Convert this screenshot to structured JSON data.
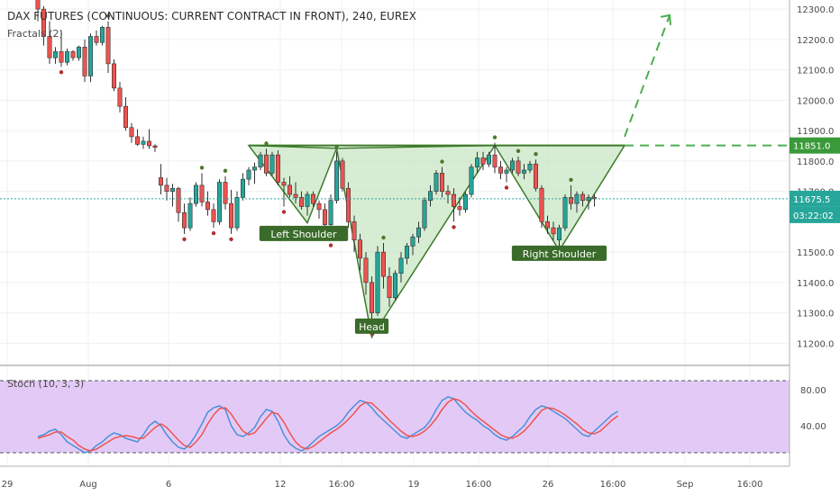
{
  "chart_data": [
    {
      "type": "candlestick",
      "title": "DAX FUTURES (CONTINUOUS: CURRENT CONTRACT IN FRONT), 240, EUREX",
      "indicator_label": "Fractals (2)",
      "y_axis": {
        "ticks": [
          "12300.0",
          "12200.0",
          "12100.0",
          "12000.0",
          "11900.0",
          "11800.0",
          "11700.0",
          "11500.0",
          "11400.0",
          "11300.0",
          "11200.0"
        ],
        "tick_values": [
          12300,
          12200,
          12100,
          12000,
          11900,
          11800,
          11700,
          11500,
          11400,
          11300,
          11200
        ],
        "range": [
          11130,
          12330
        ]
      },
      "x_axis": {
        "ticks": [
          "29",
          "Aug",
          "6",
          "12",
          "16:00",
          "19",
          "16:00",
          "26",
          "16:00",
          "Sep",
          "16:00"
        ]
      },
      "price_tags": [
        {
          "label": "11851.0",
          "value": 11851,
          "color": "#3a9a3a"
        },
        {
          "label": "11675.5",
          "value": 11675.5,
          "color": "#26a69a"
        },
        {
          "label": "03:22:02",
          "value": 11632,
          "color": "#26a69a"
        }
      ],
      "current_price": 11675.5,
      "neckline": 11851,
      "colors": {
        "up": "#26a69a",
        "down": "#ef5350",
        "pattern": "#3c7a2a",
        "fill": "#c8e6c4",
        "fractal_up": "#4a7a2a",
        "fractal_down": "#b03030"
      },
      "candles": [
        [
          12340,
          12345,
          12260,
          12300
        ],
        [
          12300,
          12310,
          12180,
          12210
        ],
        [
          12210,
          12260,
          12120,
          12140
        ],
        [
          12140,
          12175,
          12120,
          12160
        ],
        [
          12160,
          12230,
          12110,
          12125
        ],
        [
          12125,
          12170,
          12115,
          12160
        ],
        [
          12160,
          12165,
          12130,
          12140
        ],
        [
          12140,
          12180,
          12130,
          12175
        ],
        [
          12175,
          12200,
          12060,
          12080
        ],
        [
          12080,
          12220,
          12060,
          12210
        ],
        [
          12210,
          12230,
          12180,
          12190
        ],
        [
          12190,
          12245,
          12180,
          12240
        ],
        [
          12240,
          12260,
          12090,
          12120
        ],
        [
          12120,
          12135,
          12030,
          12040
        ],
        [
          12040,
          12060,
          11960,
          11980
        ],
        [
          11980,
          12010,
          11900,
          11910
        ],
        [
          11910,
          11925,
          11860,
          11880
        ],
        [
          11880,
          11905,
          11850,
          11855
        ],
        [
          11855,
          11880,
          11840,
          11865
        ],
        [
          11865,
          11905,
          11840,
          11850
        ],
        [
          11850,
          11855,
          11830,
          11845
        ],
        [
          11745,
          11790,
          11690,
          11720
        ],
        [
          11720,
          11745,
          11670,
          11700
        ],
        [
          11700,
          11725,
          11650,
          11710
        ],
        [
          11710,
          11715,
          11600,
          11630
        ],
        [
          11630,
          11660,
          11560,
          11580
        ],
        [
          11580,
          11680,
          11570,
          11660
        ],
        [
          11660,
          11730,
          11650,
          11720
        ],
        [
          11720,
          11760,
          11650,
          11665
        ],
        [
          11665,
          11700,
          11620,
          11640
        ],
        [
          11640,
          11660,
          11580,
          11600
        ],
        [
          11600,
          11740,
          11590,
          11730
        ],
        [
          11730,
          11750,
          11640,
          11660
        ],
        [
          11660,
          11705,
          11560,
          11580
        ],
        [
          11580,
          11700,
          11570,
          11680
        ],
        [
          11680,
          11760,
          11670,
          11740
        ],
        [
          11740,
          11780,
          11720,
          11770
        ],
        [
          11770,
          11795,
          11725,
          11780
        ],
        [
          11780,
          11830,
          11770,
          11820
        ],
        [
          11820,
          11840,
          11750,
          11760
        ],
        [
          11760,
          11830,
          11750,
          11820
        ],
        [
          11820,
          11835,
          11720,
          11730
        ],
        [
          11730,
          11745,
          11650,
          11720
        ],
        [
          11720,
          11750,
          11680,
          11690
        ],
        [
          11690,
          11730,
          11660,
          11680
        ],
        [
          11680,
          11700,
          11640,
          11650
        ],
        [
          11650,
          11700,
          11620,
          11690
        ],
        [
          11690,
          11700,
          11650,
          11660
        ],
        [
          11660,
          11670,
          11610,
          11640
        ],
        [
          11640,
          11660,
          11560,
          11590
        ],
        [
          11590,
          11690,
          11540,
          11670
        ],
        [
          11670,
          11830,
          11660,
          11800
        ],
        [
          11800,
          11810,
          11700,
          11710
        ],
        [
          11710,
          11730,
          11580,
          11600
        ],
        [
          11600,
          11620,
          11500,
          11540
        ],
        [
          11540,
          11560,
          11440,
          11480
        ],
        [
          11480,
          11500,
          11360,
          11400
        ],
        [
          11400,
          11420,
          11250,
          11300
        ],
        [
          11300,
          11520,
          11290,
          11500
        ],
        [
          11500,
          11530,
          11380,
          11420
        ],
        [
          11420,
          11450,
          11320,
          11350
        ],
        [
          11350,
          11440,
          11340,
          11430
        ],
        [
          11430,
          11500,
          11400,
          11480
        ],
        [
          11480,
          11530,
          11460,
          11520
        ],
        [
          11520,
          11560,
          11490,
          11550
        ],
        [
          11550,
          11600,
          11530,
          11580
        ],
        [
          11580,
          11680,
          11570,
          11670
        ],
        [
          11670,
          11720,
          11650,
          11700
        ],
        [
          11700,
          11770,
          11690,
          11760
        ],
        [
          11760,
          11780,
          11680,
          11700
        ],
        [
          11700,
          11720,
          11660,
          11690
        ],
        [
          11690,
          11710,
          11600,
          11650
        ],
        [
          11650,
          11680,
          11620,
          11640
        ],
        [
          11640,
          11700,
          11630,
          11690
        ],
        [
          11690,
          11790,
          11680,
          11780
        ],
        [
          11780,
          11830,
          11760,
          11810
        ],
        [
          11810,
          11830,
          11770,
          11790
        ],
        [
          11790,
          11830,
          11780,
          11820
        ],
        [
          11820,
          11860,
          11760,
          11780
        ],
        [
          11780,
          11800,
          11740,
          11760
        ],
        [
          11760,
          11780,
          11730,
          11770
        ],
        [
          11770,
          11810,
          11760,
          11800
        ],
        [
          11800,
          11815,
          11750,
          11760
        ],
        [
          11760,
          11790,
          11740,
          11770
        ],
        [
          11770,
          11800,
          11760,
          11790
        ],
        [
          11790,
          11805,
          11700,
          11710
        ],
        [
          11710,
          11720,
          11580,
          11600
        ],
        [
          11600,
          11620,
          11560,
          11580
        ],
        [
          11580,
          11600,
          11540,
          11560
        ],
        [
          11540,
          11590,
          11520,
          11580
        ],
        [
          11580,
          11690,
          11570,
          11680
        ],
        [
          11680,
          11720,
          11640,
          11660
        ],
        [
          11660,
          11700,
          11630,
          11690
        ],
        [
          11690,
          11700,
          11650,
          11670
        ],
        [
          11670,
          11690,
          11640,
          11680
        ],
        [
          11680,
          11690,
          11650,
          11675.5
        ]
      ],
      "fractals": [],
      "pattern_labels": [
        {
          "text": "Left Shoulder",
          "center": 11560
        },
        {
          "text": "Head",
          "center": 11255
        },
        {
          "text": "Right Shoulder",
          "center": 11495
        }
      ]
    },
    {
      "type": "line",
      "title": "Stoch (10, 3, 3)",
      "y_axis": {
        "ticks": [
          "80.00",
          "40.00"
        ],
        "tick_values": [
          80,
          40
        ],
        "range": [
          -5,
          103
        ],
        "bands": [
          90,
          10
        ]
      },
      "colors": {
        "k": "#4a90d9",
        "d": "#ef5350",
        "band_fill": "#e3caf6",
        "band_line": "#555555"
      },
      "series": [
        {
          "key": "k",
          "values": [
            28,
            30,
            34,
            36,
            30,
            22,
            18,
            14,
            10,
            12,
            18,
            22,
            28,
            32,
            30,
            26,
            24,
            22,
            30,
            40,
            45,
            40,
            30,
            22,
            16,
            14,
            20,
            30,
            42,
            55,
            60,
            62,
            58,
            40,
            30,
            28,
            32,
            38,
            50,
            58,
            56,
            45,
            30,
            20,
            15,
            12,
            16,
            22,
            28,
            32,
            36,
            40,
            46,
            55,
            62,
            68,
            66,
            60,
            52,
            46,
            40,
            34,
            28,
            26,
            30,
            34,
            38,
            46,
            58,
            68,
            72,
            70,
            62,
            55,
            50,
            46,
            40,
            36,
            30,
            26,
            24,
            28,
            34,
            40,
            50,
            58,
            62,
            60,
            56,
            52,
            48,
            42,
            36,
            30,
            28,
            34,
            40,
            46,
            52,
            56
          ]
        },
        {
          "key": "d",
          "values": [
            26,
            28,
            30,
            33,
            33,
            28,
            24,
            18,
            14,
            12,
            14,
            18,
            22,
            26,
            28,
            29,
            28,
            26,
            26,
            32,
            38,
            42,
            38,
            31,
            24,
            18,
            16,
            22,
            30,
            42,
            52,
            59,
            60,
            53,
            43,
            34,
            30,
            32,
            40,
            48,
            55,
            53,
            44,
            32,
            22,
            16,
            14,
            17,
            22,
            27,
            32,
            36,
            41,
            47,
            54,
            62,
            66,
            65,
            59,
            53,
            46,
            40,
            34,
            29,
            28,
            30,
            34,
            40,
            48,
            58,
            66,
            70,
            68,
            63,
            56,
            50,
            45,
            40,
            35,
            30,
            27,
            26,
            29,
            34,
            41,
            49,
            57,
            60,
            59,
            56,
            52,
            47,
            42,
            36,
            32,
            31,
            34,
            40,
            46,
            51
          ]
        }
      ]
    }
  ]
}
